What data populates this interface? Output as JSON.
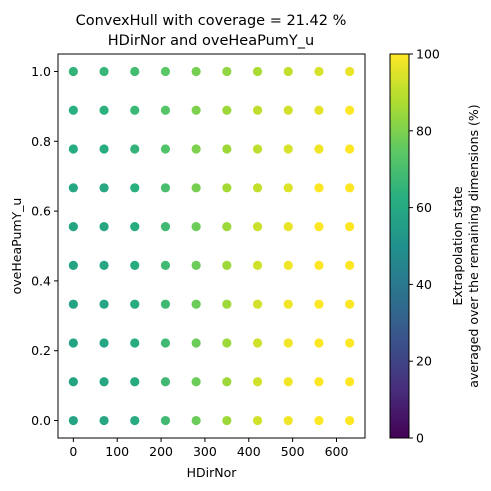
{
  "chart_data": {
    "type": "scatter",
    "title_line1": "ConvexHull with coverage = 21.42 %",
    "title_line2": "HDirNor and oveHeaPumY_u",
    "xlabel": "HDirNor",
    "ylabel": "oveHeaPumY_u",
    "xlim": [
      -35,
      665
    ],
    "ylim": [
      -0.05,
      1.05
    ],
    "xticks": [
      0,
      100,
      200,
      300,
      400,
      500,
      600
    ],
    "yticks": [
      0.0,
      0.2,
      0.4,
      0.6,
      0.8,
      1.0
    ],
    "ytick_labels": [
      "0.0",
      "0.2",
      "0.4",
      "0.6",
      "0.8",
      "1.0"
    ],
    "grid": false,
    "colormap": "viridis",
    "x": [
      0,
      70,
      140,
      210,
      280,
      350,
      420,
      490,
      560,
      630
    ],
    "y": [
      0.0,
      0.1111,
      0.2222,
      0.3333,
      0.4444,
      0.5556,
      0.6667,
      0.7778,
      0.8889,
      1.0
    ],
    "values": [
      [
        58,
        59,
        61,
        68,
        77,
        85,
        93,
        98,
        100,
        100
      ],
      [
        58,
        59,
        61,
        68,
        77,
        85,
        93,
        98,
        100,
        100
      ],
      [
        58,
        59,
        61,
        68,
        77,
        85,
        93,
        98,
        100,
        100
      ],
      [
        58,
        59,
        61,
        68,
        77,
        85,
        93,
        98,
        100,
        100
      ],
      [
        58,
        59,
        61,
        68,
        77,
        85,
        93,
        98,
        100,
        100
      ],
      [
        58,
        59,
        61,
        68,
        77,
        85,
        92,
        97,
        100,
        100
      ],
      [
        59,
        60,
        63,
        70,
        79,
        86,
        91,
        95,
        100,
        100
      ],
      [
        61,
        62,
        65,
        72,
        80,
        85,
        90,
        94,
        98,
        100
      ],
      [
        63,
        64,
        67,
        73,
        80,
        85,
        90,
        93,
        96,
        100
      ],
      [
        65,
        66,
        69,
        74,
        79,
        83,
        87,
        91,
        94,
        97
      ]
    ],
    "colorbar": {
      "label_line1": "Extrapolation state",
      "label_line2": "averaged over the remaining dimensions (%)",
      "range": [
        0,
        100
      ],
      "ticks": [
        0,
        20,
        40,
        60,
        80,
        100
      ]
    }
  }
}
